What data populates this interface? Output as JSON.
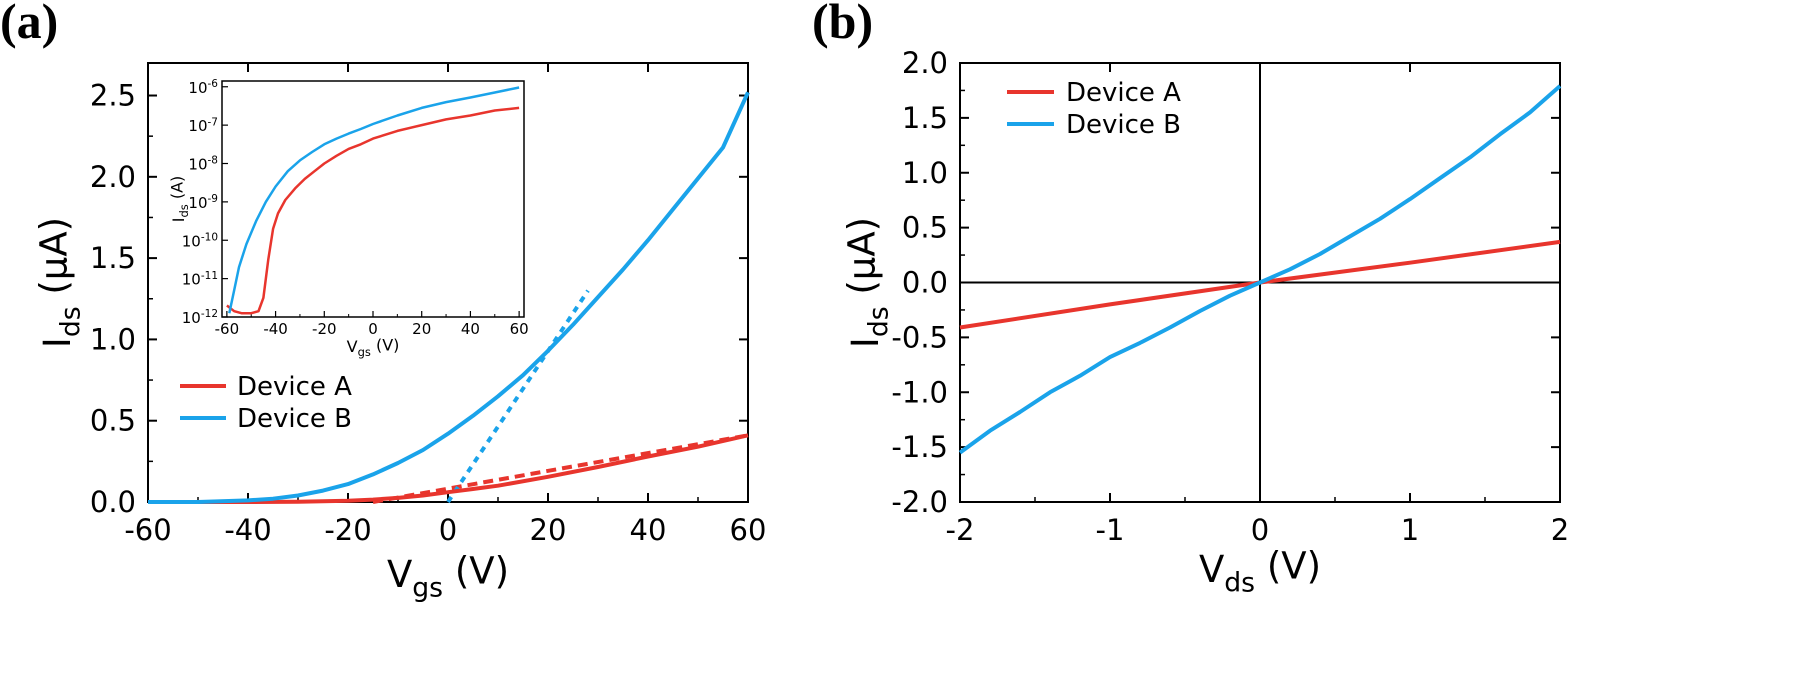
{
  "colors": {
    "device_a": "#e8352d",
    "device_b": "#1aa3ea",
    "axis": "#000000"
  },
  "chart_data": [
    {
      "panel": "(a)",
      "type": "line",
      "xlabel_main": "V",
      "xlabel_sub": "gs",
      "xlabel_unit": " (V)",
      "ylabel_main": "I",
      "ylabel_sub": "ds",
      "ylabel_unit": " (μA)",
      "xlim": [
        -60,
        60
      ],
      "ylim": [
        0,
        2.7
      ],
      "xticks": [
        "-60",
        "-40",
        "-20",
        "0",
        "20",
        "40",
        "60"
      ],
      "yticks": [
        "0.0",
        "0.5",
        "1.0",
        "1.5",
        "2.0",
        "2.5"
      ],
      "legend": {
        "position": "left-middle",
        "entries": [
          "Device A",
          "Device B"
        ]
      },
      "series": [
        {
          "name": "Device A",
          "color": "#e8352d",
          "x": [
            -60,
            -40,
            -30,
            -20,
            -15,
            -10,
            -5,
            0,
            5,
            10,
            20,
            30,
            40,
            50,
            60
          ],
          "y": [
            0,
            0,
            0.002,
            0.008,
            0.015,
            0.025,
            0.04,
            0.06,
            0.08,
            0.1,
            0.155,
            0.215,
            0.28,
            0.34,
            0.41
          ]
        },
        {
          "name": "Device B",
          "color": "#1aa3ea",
          "x": [
            -60,
            -50,
            -40,
            -35,
            -30,
            -25,
            -20,
            -15,
            -10,
            -5,
            0,
            5,
            10,
            15,
            20,
            25,
            30,
            35,
            40,
            45,
            50,
            55,
            60
          ],
          "y": [
            0,
            0,
            0.01,
            0.02,
            0.04,
            0.07,
            0.11,
            0.17,
            0.24,
            0.32,
            0.42,
            0.53,
            0.65,
            0.78,
            0.93,
            1.09,
            1.26,
            1.43,
            1.61,
            1.8,
            1.99,
            2.18,
            2.52
          ]
        }
      ],
      "fit_lines": [
        {
          "series": "Device A",
          "style": "dashed",
          "x": [
            -15,
            60
          ],
          "y": [
            0.0,
            0.41
          ]
        },
        {
          "series": "Device B",
          "style": "dotted",
          "x": [
            0,
            28
          ],
          "y": [
            0.0,
            1.3
          ]
        }
      ],
      "inset": {
        "type": "line",
        "yscale": "log",
        "xlabel_main": "V",
        "xlabel_sub": "gs",
        "xlabel_unit": " (V)",
        "ylabel_main": "I",
        "ylabel_sub": "ds",
        "ylabel_unit": " (A)",
        "xlim": [
          -62,
          62
        ],
        "ylim_exp": [
          -12,
          -5.85
        ],
        "xticks": [
          "-60",
          "-40",
          "-20",
          "0",
          "20",
          "40",
          "60"
        ],
        "yticks_exp": [
          "-12",
          "-11",
          "-10",
          "-9",
          "-8",
          "-7",
          "-6"
        ],
        "series": [
          {
            "name": "Device A",
            "color": "#e8352d",
            "x": [
              -60,
              -57,
              -54,
              -50,
              -47,
              -45,
              -43,
              -41,
              -39,
              -36,
              -32,
              -28,
              -24,
              -20,
              -15,
              -10,
              -5,
              0,
              10,
              20,
              30,
              40,
              50,
              60
            ],
            "log_y": [
              -11.7,
              -11.85,
              -11.9,
              -11.9,
              -11.85,
              -11.5,
              -10.5,
              -9.7,
              -9.3,
              -8.95,
              -8.65,
              -8.4,
              -8.2,
              -8.0,
              -7.8,
              -7.62,
              -7.5,
              -7.35,
              -7.15,
              -7.0,
              -6.85,
              -6.75,
              -6.62,
              -6.55
            ]
          },
          {
            "name": "Device B",
            "color": "#1aa3ea",
            "x": [
              -59,
              -57,
              -55,
              -52,
              -48,
              -44,
              -40,
              -35,
              -30,
              -25,
              -20,
              -15,
              -10,
              -5,
              0,
              10,
              20,
              30,
              40,
              50,
              60
            ],
            "log_y": [
              -11.9,
              -11.3,
              -10.7,
              -10.1,
              -9.5,
              -9.0,
              -8.6,
              -8.2,
              -7.92,
              -7.7,
              -7.5,
              -7.35,
              -7.22,
              -7.1,
              -6.97,
              -6.75,
              -6.55,
              -6.4,
              -6.28,
              -6.15,
              -6.02
            ]
          }
        ]
      }
    },
    {
      "panel": "(b)",
      "type": "line",
      "xlabel_main": "V",
      "xlabel_sub": "ds",
      "xlabel_unit": " (V)",
      "ylabel_main": "I",
      "ylabel_sub": "ds",
      "ylabel_unit": " (μA)",
      "xlim": [
        -2,
        2
      ],
      "ylim": [
        -2.0,
        2.0
      ],
      "xticks": [
        "-2",
        "-1",
        "0",
        "1",
        "2"
      ],
      "yticks": [
        "-2.0",
        "-1.5",
        "-1.0",
        "-0.5",
        "0.0",
        "0.5",
        "1.0",
        "1.5",
        "2.0"
      ],
      "legend": {
        "position": "top-left",
        "entries": [
          "Device A",
          "Device B"
        ]
      },
      "zero_lines": true,
      "series": [
        {
          "name": "Device A",
          "color": "#e8352d",
          "x": [
            -2,
            -1,
            0,
            1,
            2
          ],
          "y": [
            -0.41,
            -0.2,
            0,
            0.18,
            0.37
          ]
        },
        {
          "name": "Device B",
          "color": "#1aa3ea",
          "x": [
            -2,
            -1.8,
            -1.6,
            -1.4,
            -1.2,
            -1.0,
            -0.8,
            -0.6,
            -0.4,
            -0.2,
            0,
            0.2,
            0.4,
            0.6,
            0.8,
            1.0,
            1.2,
            1.4,
            1.6,
            1.8,
            2.0
          ],
          "y": [
            -1.55,
            -1.35,
            -1.18,
            -1.0,
            -0.85,
            -0.68,
            -0.55,
            -0.41,
            -0.26,
            -0.12,
            0,
            0.12,
            0.26,
            0.42,
            0.58,
            0.76,
            0.95,
            1.14,
            1.35,
            1.55,
            1.79
          ]
        }
      ]
    }
  ]
}
